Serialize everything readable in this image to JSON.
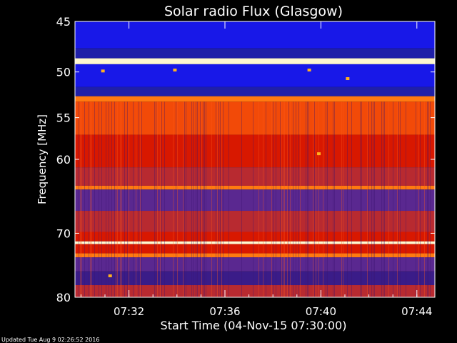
{
  "chart_data": {
    "type": "heatmap",
    "title": "Solar radio Flux (Glasgow)",
    "xlabel": "Start Time (04-Nov-15 07:30:00)",
    "ylabel": "Frequency [MHz]",
    "x_axis": {
      "unit": "time",
      "range": [
        "07:29:45",
        "07:44:45"
      ],
      "ticks": [
        "07:32",
        "07:36",
        "07:40",
        "07:44"
      ],
      "tick_values_min": [
        2,
        6,
        10,
        14
      ],
      "range_values_min": [
        -0.25,
        14.75
      ]
    },
    "y_axis": {
      "unit": "MHz",
      "scale": "log",
      "range": [
        45,
        80
      ],
      "reversed": true,
      "ticks": [
        45,
        50,
        55,
        60,
        70,
        80
      ]
    },
    "bands": [
      {
        "from": 44.6,
        "to": 47.6,
        "level": "blue"
      },
      {
        "from": 47.6,
        "to": 48.6,
        "level": "blue-dark"
      },
      {
        "from": 48.6,
        "to": 49.2,
        "level": "saturated"
      },
      {
        "from": 49.2,
        "to": 51.6,
        "level": "blue"
      },
      {
        "from": 51.6,
        "to": 52.6,
        "level": "blue-dark"
      },
      {
        "from": 52.6,
        "to": 53.2,
        "level": "orange"
      },
      {
        "from": 53.2,
        "to": 57.0,
        "level": "orange-red"
      },
      {
        "from": 57.0,
        "to": 61.0,
        "level": "red"
      },
      {
        "from": 61.0,
        "to": 63.4,
        "level": "mixed-red"
      },
      {
        "from": 63.4,
        "to": 63.9,
        "level": "orange"
      },
      {
        "from": 63.9,
        "to": 66.8,
        "level": "purple"
      },
      {
        "from": 66.8,
        "to": 69.8,
        "level": "mixed-red"
      },
      {
        "from": 69.8,
        "to": 71.2,
        "level": "red"
      },
      {
        "from": 71.2,
        "to": 71.6,
        "level": "saturated"
      },
      {
        "from": 71.6,
        "to": 73.0,
        "level": "red"
      },
      {
        "from": 73.0,
        "to": 73.6,
        "level": "orange"
      },
      {
        "from": 73.6,
        "to": 75.8,
        "level": "purple"
      },
      {
        "from": 75.8,
        "to": 78.0,
        "level": "purple-dark"
      },
      {
        "from": 78.0,
        "to": 80.2,
        "level": "mixed-red"
      }
    ],
    "colors": {
      "blue": "#1818e8",
      "blue-dark": "#2020a8",
      "saturated": "#fff8d0",
      "orange": "#ff7a10",
      "orange-red": "#f24a08",
      "red": "#d81800",
      "mixed-red": "#b82a30",
      "purple": "#5a2890",
      "purple-dark": "#3a1c88"
    },
    "bursts": [
      {
        "time_min": 0.9,
        "freq_mhz": 49.9
      },
      {
        "time_min": 3.9,
        "freq_mhz": 49.8
      },
      {
        "time_min": 9.5,
        "freq_mhz": 49.8
      },
      {
        "time_min": 9.9,
        "freq_mhz": 59.3
      },
      {
        "time_min": 11.1,
        "freq_mhz": 50.7
      },
      {
        "time_min": 1.2,
        "freq_mhz": 76.5
      }
    ]
  },
  "footer": {
    "updated": "Updated Tue Aug  9 02:26:52 2016"
  }
}
